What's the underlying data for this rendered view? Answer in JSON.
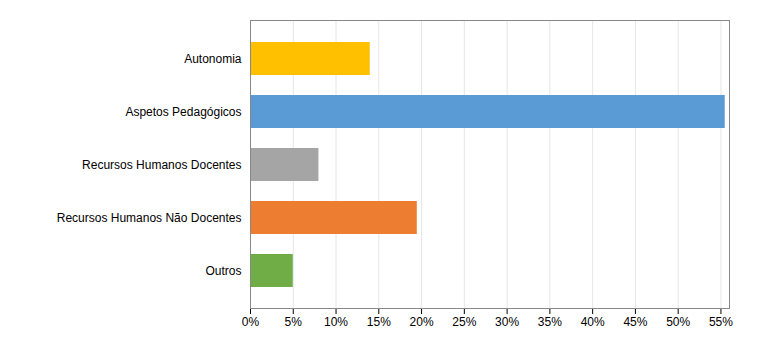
{
  "chart_data": {
    "type": "bar",
    "orientation": "horizontal",
    "categories": [
      "Autonomia",
      "Aspetos Pedagógicos",
      "Recursos Humanos Docentes",
      "Recursos Humanos Não Docentes",
      "Outros"
    ],
    "values": [
      14,
      55.5,
      8,
      19.5,
      5
    ],
    "colors": [
      "#ffc000",
      "#5b9bd5",
      "#a5a5a5",
      "#ed7d31",
      "#70ad47"
    ],
    "xlim": [
      0,
      56
    ],
    "xticks": [
      {
        "value": 0,
        "label": "0%"
      },
      {
        "value": 5,
        "label": "5%"
      },
      {
        "value": 10,
        "label": "10%"
      },
      {
        "value": 15,
        "label": "15%"
      },
      {
        "value": 20,
        "label": "20%"
      },
      {
        "value": 25,
        "label": "25%"
      },
      {
        "value": 30,
        "label": "30%"
      },
      {
        "value": 35,
        "label": "35%"
      },
      {
        "value": 40,
        "label": "40%"
      },
      {
        "value": 45,
        "label": "45%"
      },
      {
        "value": 50,
        "label": "50%"
      },
      {
        "value": 55,
        "label": "55%"
      }
    ],
    "grid": true
  }
}
